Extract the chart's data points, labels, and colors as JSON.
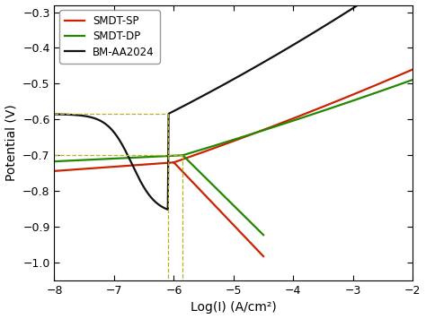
{
  "xlabel": "Log(I) (A/cm²)",
  "ylabel": "Potential (V)",
  "xlim": [
    -8,
    -2
  ],
  "ylim": [
    -1.05,
    -0.28
  ],
  "yticks": [
    -1.0,
    -0.9,
    -0.8,
    -0.7,
    -0.6,
    -0.5,
    -0.4,
    -0.3
  ],
  "xticks": [
    -8,
    -7,
    -6,
    -5,
    -4,
    -3,
    -2
  ],
  "colors": {
    "SMDT-SP": "#cc2200",
    "SMDT-DP": "#228800",
    "BM-AA2024": "#111111"
  },
  "dashed_color": "#b8b020",
  "dashed_lw": 0.9,
  "background_color": "#ffffff",
  "line_width": 1.6
}
